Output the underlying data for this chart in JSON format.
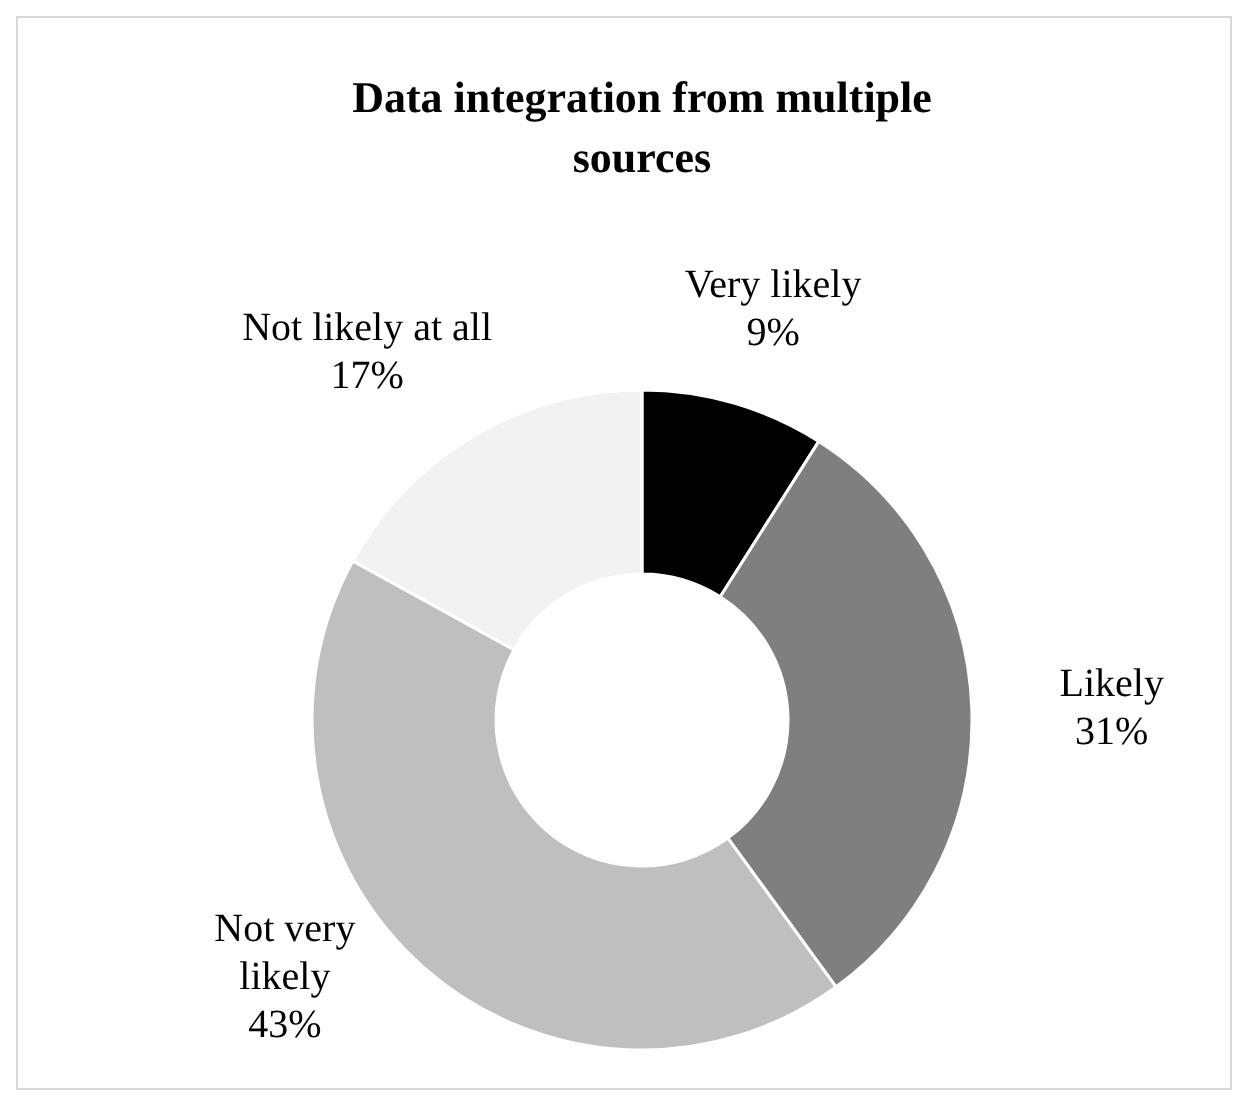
{
  "chart_data": {
    "type": "donut",
    "title": "Data integration from multiple sources",
    "categories": [
      "Very likely",
      "Likely",
      "Not very likely",
      "Not likely at all"
    ],
    "values": [
      9,
      31,
      43,
      17
    ],
    "value_labels": [
      "9%",
      "31%",
      "43%",
      "17%"
    ],
    "colors": [
      "#000000",
      "#7f7f7f",
      "#bfbfbf",
      "#f2f2f2"
    ],
    "legend": false
  }
}
